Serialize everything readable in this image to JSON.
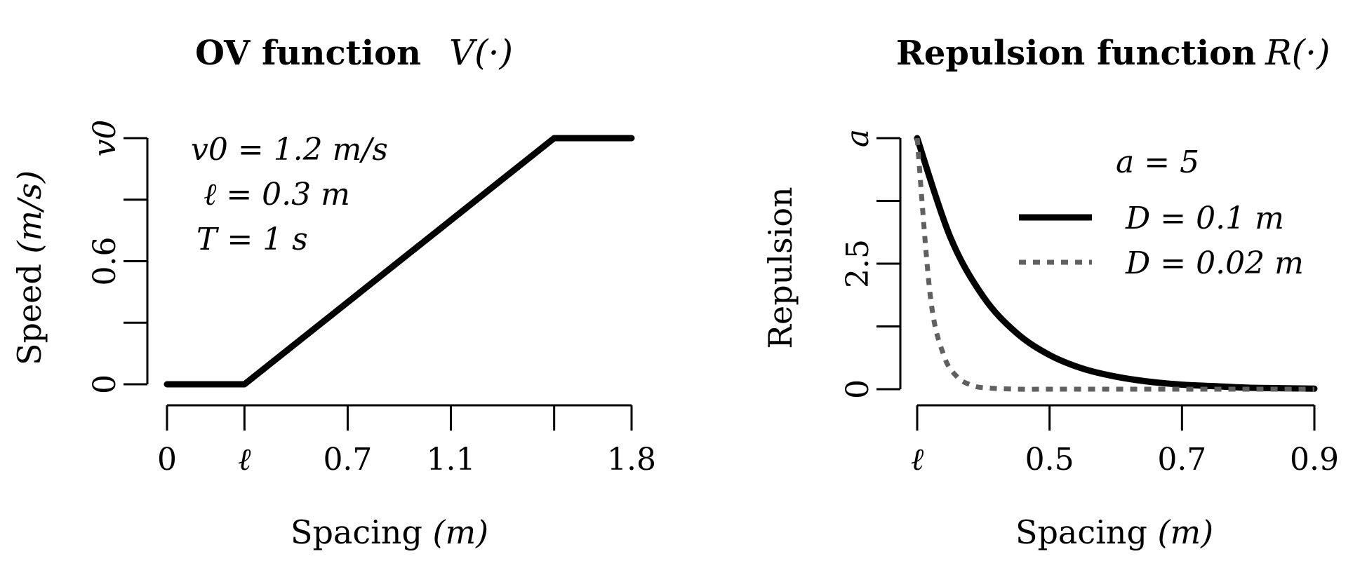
{
  "figure": {
    "left": {
      "title_bold": "OV function",
      "title_math": "V(·)",
      "xlabel_main": "Spacing ",
      "xlabel_unit": "(m)",
      "ylabel_main": "Speed ",
      "ylabel_unit": "(m/s)",
      "x_ticks": [
        {
          "value": 0,
          "label": "0"
        },
        {
          "value": 0.3,
          "label": "ℓ"
        },
        {
          "value": 0.7,
          "label": "0.7"
        },
        {
          "value": 1.1,
          "label": "1.1"
        },
        {
          "value": 1.5,
          "label": ""
        },
        {
          "value": 1.8,
          "label": "1.8"
        }
      ],
      "y_ticks": [
        {
          "value": 0,
          "label": "0"
        },
        {
          "value": 0.3,
          "label": ""
        },
        {
          "value": 0.6,
          "label": "0.6"
        },
        {
          "value": 0.9,
          "label": ""
        },
        {
          "value": 1.2,
          "label": "v0"
        }
      ],
      "annotations": [
        "v0 = 1.2 m/s",
        "ℓ = 0.3 m",
        "T = 1 s"
      ]
    },
    "right": {
      "title_bold": "Repulsion function",
      "title_math": "R(·)",
      "xlabel_main": "Spacing ",
      "xlabel_unit": "(m)",
      "ylabel": "Repulsion",
      "x_ticks": [
        {
          "value": 0.3,
          "label": "ℓ"
        },
        {
          "value": 0.5,
          "label": "0.5"
        },
        {
          "value": 0.7,
          "label": "0.7"
        },
        {
          "value": 0.9,
          "label": "0.9"
        }
      ],
      "y_ticks": [
        {
          "value": 0,
          "label": "0"
        },
        {
          "value": 1.25,
          "label": ""
        },
        {
          "value": 2.5,
          "label": "2.5"
        },
        {
          "value": 3.75,
          "label": ""
        },
        {
          "value": 5,
          "label": "a"
        }
      ],
      "param_label": "a = 5",
      "legend": [
        "D = 0.1 m",
        "D = 0.02 m"
      ]
    }
  },
  "chart_data": [
    {
      "type": "line",
      "title": "OV function V(·)",
      "xlabel": "Spacing (m)",
      "ylabel": "Speed (m/s)",
      "xlim": [
        0,
        1.8
      ],
      "ylim": [
        0,
        1.2
      ],
      "grid": false,
      "series": [
        {
          "x": [
            0,
            0.3,
            1.5,
            1.8
          ],
          "y": [
            0,
            0,
            1.2,
            1.2
          ],
          "color": "#000000",
          "style": "solid"
        }
      ]
    },
    {
      "type": "line",
      "title": "Repulsion function R(·)",
      "xlabel": "Spacing (m)",
      "ylabel": "Repulsion",
      "xlim": [
        0.3,
        0.9
      ],
      "ylim": [
        0,
        5
      ],
      "grid": false,
      "legend_position": "top-right",
      "series": [
        {
          "name": "D = 0.1 m",
          "color": "#000000",
          "style": "solid",
          "x": [
            0.3,
            0.35,
            0.4,
            0.45,
            0.5,
            0.55,
            0.6,
            0.65,
            0.7,
            0.75,
            0.8,
            0.85,
            0.9
          ],
          "y": [
            5,
            3.03,
            1.84,
            1.12,
            0.68,
            0.41,
            0.25,
            0.15,
            0.09,
            0.06,
            0.03,
            0.02,
            0.01
          ]
        },
        {
          "name": "D = 0.02 m",
          "color": "#606060",
          "style": "dashed",
          "x": [
            0.3,
            0.32,
            0.34,
            0.36,
            0.38,
            0.4,
            0.45,
            0.5,
            0.6,
            0.7,
            0.8,
            0.9
          ],
          "y": [
            5,
            1.84,
            0.68,
            0.25,
            0.09,
            0.03,
            0.0,
            0.0,
            0.0,
            0.0,
            0.0,
            0.0
          ]
        }
      ]
    }
  ]
}
